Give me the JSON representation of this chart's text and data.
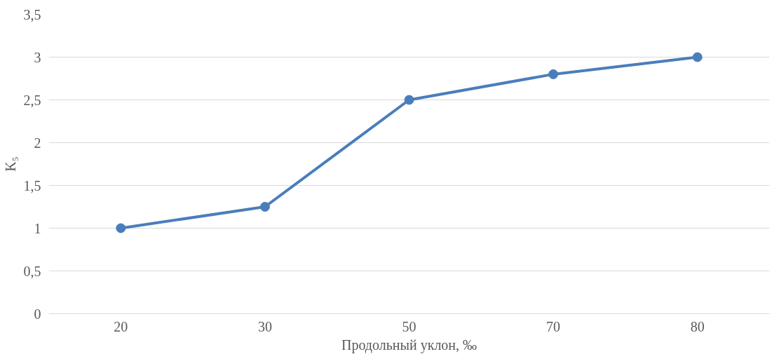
{
  "chart_data": {
    "type": "line",
    "xlabel": "Продольный уклон, ‰",
    "ylabel": "K₅",
    "categories": [
      "20",
      "30",
      "50",
      "70",
      "80"
    ],
    "series": [
      {
        "color": "#4a7ebb",
        "values": [
          1,
          1.25,
          2.5,
          2.8,
          3
        ]
      }
    ],
    "ylim": [
      0,
      3.5
    ],
    "yticks": [
      0,
      {
        "value": 0.5,
        "label": "0,5"
      },
      1,
      {
        "value": 1.5,
        "label": "1,5"
      },
      2,
      {
        "value": 2.5,
        "label": "2,5"
      },
      3,
      {
        "value": 3.5,
        "label": "3,5"
      }
    ],
    "grid": "y",
    "marker": "circle",
    "line_style": "solid"
  }
}
